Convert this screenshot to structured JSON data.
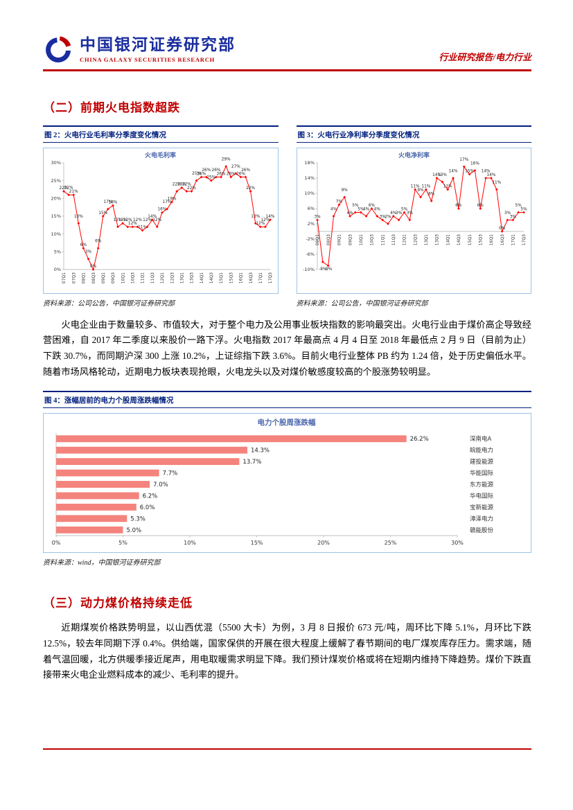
{
  "header": {
    "org_cn": "中国银河证券研究部",
    "org_en": "CHINA GALAXY SECURITIES RESEARCH",
    "report_type": "行业研究报告/电力行业"
  },
  "section2": {
    "title": "（二）前期火电指数超跌"
  },
  "fig2": {
    "caption": "图 2：火电行业毛利率分季度变化情况",
    "source": "资料来源：公司公告，中国银河证券研究部"
  },
  "fig3": {
    "caption": "图 3：火电行业净利率分季度变化情况",
    "source": "资料来源：公司公告，中国银河证券研究部"
  },
  "para1": "火电企业由于数量较多、市值较大，对于整个电力及公用事业板块指数的影响最突出。火电行业由于煤价高企导致经营困难，自 2017 年二季度以来股价一路下浮。火电指数 2017 年最高点 4 月 4 日至 2018 年最低点 2 月 9 日（目前为止）下跌 30.7%，而同期沪深 300 上涨 10.2%，上证综指下跌 3.6%。目前火电行业整体 PB 约为 1.24 倍，处于历史偏低水平。随着市场风格轮动，近期电力板块表现抢眼，火电龙头以及对煤价敏感度较高的个股涨势较明显。",
  "fig4": {
    "caption": "图 4：涨幅居前的电力个股周涨跌幅情况",
    "source": "资料来源：wind，中国银河证券研究部"
  },
  "section3": {
    "title": "（三）动力煤价格持续走低"
  },
  "para2": "近期煤炭价格跌势明显，以山西优混（5500 大卡）为例，3 月 8 日报价 673 元/吨，周环比下降 5.1%，月环比下跌 12.5%，较去年同期下浮 0.4%。供给端，国家保供的开展在很大程度上缓解了春节期间的电厂煤炭库存压力。需求端，随着气温回暖，北方供暖季接近尾声，用电取暖需求明显下降。我们预计煤炭价格或将在短期内维持下降趋势。煤价下跌直接带来火电企业燃料成本的减少、毛利率的提升。",
  "colors": {
    "accent_red": "#c00000",
    "navy": "#001f7e",
    "brand_blue": "#1a2d9e",
    "chart_line_red": "#ff0000",
    "bar_salmon": "#f4837d",
    "chart_box_border": "#9dc3e6",
    "chart_title_blue": "#4a66ac"
  },
  "chart_data": [
    {
      "id": "gross-margin",
      "type": "line",
      "title": "火电毛利率",
      "color": "#ff0000",
      "x": [
        "07Q1",
        "07Q2",
        "07Q3",
        "07Q4",
        "08Q1",
        "08Q2",
        "08Q3",
        "08Q4",
        "09Q1",
        "09Q2",
        "09Q3",
        "09Q4",
        "10Q1",
        "10Q2",
        "10Q3",
        "10Q4",
        "11Q1",
        "11Q2",
        "11Q3",
        "11Q4",
        "12Q1",
        "12Q2",
        "12Q3",
        "12Q4",
        "13Q1",
        "13Q2",
        "13Q3",
        "13Q4",
        "14Q1",
        "14Q2",
        "14Q3",
        "14Q4",
        "15Q1",
        "15Q2",
        "15Q3",
        "15Q4",
        "16Q1",
        "16Q2",
        "16Q3",
        "16Q4",
        "17Q1",
        "17Q2",
        "17Q3"
      ],
      "values": [
        22,
        21,
        21,
        13,
        6,
        3,
        0,
        6,
        15,
        17,
        18,
        12,
        13,
        12,
        12,
        12,
        11,
        12,
        14,
        12,
        16,
        17,
        19,
        22,
        23,
        22,
        22,
        25,
        26,
        26,
        25,
        26,
        26,
        29,
        26,
        27,
        26,
        26,
        22,
        13,
        12,
        12,
        14
      ],
      "ylim": [
        0,
        30
      ],
      "yticks": [
        0,
        5,
        10,
        15,
        20,
        25,
        30
      ],
      "xtick_every": 2,
      "legend_position": "none",
      "grid": false
    },
    {
      "id": "net-margin",
      "type": "line",
      "title": "火电净利率",
      "color": "#ff0000",
      "x": [
        "08Q1",
        "08Q2",
        "08Q3",
        "08Q4",
        "09Q1",
        "09Q2",
        "09Q3",
        "09Q4",
        "10Q1",
        "10Q2",
        "10Q3",
        "10Q4",
        "11Q1",
        "11Q2",
        "11Q3",
        "11Q4",
        "12Q1",
        "12Q2",
        "12Q3",
        "12Q4",
        "13Q1",
        "13Q2",
        "13Q3",
        "13Q4",
        "14Q1",
        "14Q2",
        "14Q3",
        "14Q4",
        "15Q1",
        "15Q2",
        "15Q3",
        "15Q4",
        "16Q1",
        "16Q2",
        "16Q3",
        "16Q4",
        "17Q1",
        "17Q2",
        "17Q3"
      ],
      "values": [
        3,
        -8,
        -9,
        4,
        7,
        9,
        4,
        5,
        5,
        4,
        6,
        4,
        3,
        2,
        4,
        3,
        5,
        3,
        11,
        9,
        11,
        8,
        14,
        13,
        11,
        14,
        6,
        17,
        15,
        16,
        6,
        14,
        14,
        11,
        0,
        3,
        3,
        5,
        5
      ],
      "ylim": [
        -10,
        18
      ],
      "yticks": [
        -10,
        -6,
        -2,
        2,
        6,
        10,
        14,
        18
      ],
      "xtick_every": 2,
      "legend_position": "none",
      "grid": false
    },
    {
      "id": "weekly-change",
      "type": "bar",
      "title": "电力个股周涨跌幅",
      "color": "#f4837d",
      "categories": [
        "深南电A",
        "皖能电力",
        "建投能源",
        "华能国际",
        "东方能源",
        "华电国际",
        "宝新能源",
        "漳泽电力",
        "赣能股份"
      ],
      "values": [
        26.2,
        14.3,
        13.7,
        7.7,
        7.0,
        6.2,
        6.0,
        5.3,
        5.0
      ],
      "xlim": [
        0,
        30
      ],
      "xticks": [
        0,
        5,
        10,
        15,
        20,
        25,
        30
      ],
      "orientation": "horizontal",
      "legend_position": "right",
      "grid": false
    }
  ]
}
